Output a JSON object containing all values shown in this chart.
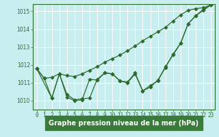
{
  "background_color": "#c8eef0",
  "grid_color": "#ffffff",
  "line_color": "#2d6a2d",
  "xlabel_color": "#2d6a2d",
  "spine_color": "#2d6a2d",
  "title": "Graphe pression niveau de la mer (hPa)",
  "xlim": [
    -0.5,
    23.5
  ],
  "ylim": [
    1009.5,
    1015.4
  ],
  "yticks": [
    1010,
    1011,
    1012,
    1013,
    1014,
    1015
  ],
  "xticks": [
    0,
    1,
    2,
    3,
    4,
    5,
    6,
    7,
    8,
    9,
    10,
    11,
    12,
    13,
    14,
    15,
    16,
    17,
    18,
    19,
    20,
    21,
    22,
    23
  ],
  "line1_x": [
    0,
    1,
    2,
    3,
    4,
    5,
    6,
    7,
    8,
    9,
    10,
    11,
    12,
    13,
    14,
    15,
    16,
    17,
    18,
    19,
    20,
    21,
    22,
    23
  ],
  "line1_y": [
    1011.8,
    1011.25,
    1011.3,
    1011.5,
    1011.4,
    1011.35,
    1011.5,
    1011.7,
    1011.9,
    1012.15,
    1012.35,
    1012.55,
    1012.8,
    1013.05,
    1013.35,
    1013.6,
    1013.85,
    1014.1,
    1014.45,
    1014.8,
    1015.05,
    1015.15,
    1015.2,
    1015.35
  ],
  "line2_x": [
    0,
    1,
    2,
    3,
    4,
    5,
    6,
    7,
    8,
    9,
    10,
    11,
    12,
    13,
    14,
    15,
    16,
    17,
    18,
    19,
    20,
    21,
    22,
    23
  ],
  "line2_y": [
    1011.8,
    1011.25,
    1010.15,
    1011.5,
    1010.2,
    1010.0,
    1010.05,
    1011.2,
    1011.15,
    1011.55,
    1011.5,
    1011.1,
    1011.05,
    1011.55,
    1010.55,
    1010.75,
    1011.15,
    1011.85,
    1012.6,
    1013.2,
    1014.3,
    1014.75,
    1015.1,
    1015.35
  ],
  "line3_x": [
    0,
    2,
    3,
    4,
    5,
    6,
    7,
    8,
    9,
    10,
    11,
    12,
    13,
    14,
    15,
    16,
    17,
    18,
    19,
    20,
    21,
    22,
    23
  ],
  "line3_y": [
    1011.8,
    1010.15,
    1011.5,
    1010.35,
    1010.05,
    1010.1,
    1010.15,
    1011.2,
    1011.55,
    1011.5,
    1011.1,
    1011.0,
    1011.5,
    1010.55,
    1010.85,
    1011.1,
    1011.9,
    1012.55,
    1013.2,
    1014.3,
    1014.75,
    1015.05,
    1015.35
  ],
  "title_bg": "#3a7a3a",
  "title_fg": "#ffffff",
  "tick_fontsize": 5.5,
  "label_fontsize": 7
}
